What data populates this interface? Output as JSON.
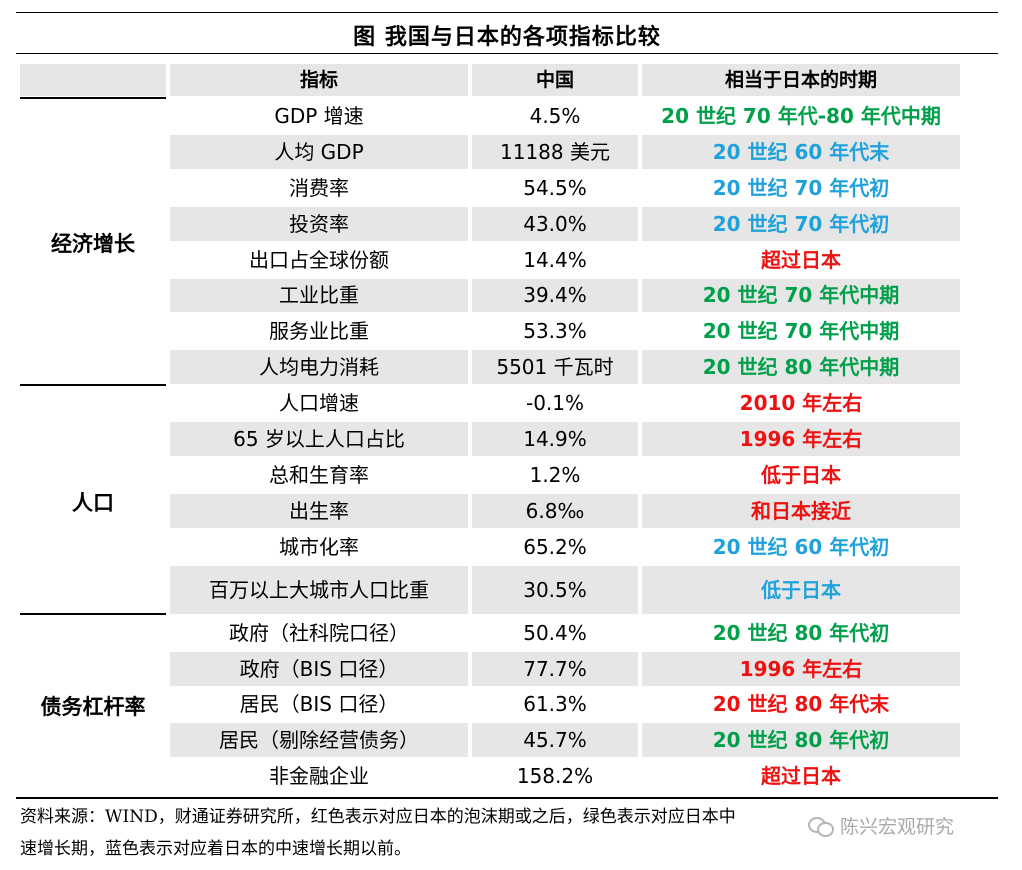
{
  "title": "图  我国与日本的各项指标比较",
  "headers": [
    "指标",
    "中国",
    "相当于日本的时期"
  ],
  "categories": {
    "economy": "经济增长",
    "population": "人口",
    "debt": "债务杠杆率"
  },
  "rows": [
    {
      "indicator": "GDP 增速",
      "china": "4.5%",
      "period": "20 世纪 70 年代-80 年代中期",
      "color": "green"
    },
    {
      "indicator": "人均 GDP",
      "china": "11188 美元",
      "period": "20 世纪 60 年代末",
      "color": "blue"
    },
    {
      "indicator": "消费率",
      "china": "54.5%",
      "period": "20 世纪 70 年代初",
      "color": "blue"
    },
    {
      "indicator": "投资率",
      "china": "43.0%",
      "period": "20 世纪 70 年代初",
      "color": "blue"
    },
    {
      "indicator": "出口占全球份额",
      "china": "14.4%",
      "period": "超过日本",
      "color": "red"
    },
    {
      "indicator": "工业比重",
      "china": "39.4%",
      "period": "20 世纪 70 年代中期",
      "color": "green"
    },
    {
      "indicator": "服务业比重",
      "china": "53.3%",
      "period": "20 世纪 70 年代中期",
      "color": "green"
    },
    {
      "indicator": "人均电力消耗",
      "china": "5501 千瓦时",
      "period": "20 世纪 80 年代中期",
      "color": "green"
    },
    {
      "indicator": "人口增速",
      "china": "-0.1%",
      "period": "2010 年左右",
      "color": "red"
    },
    {
      "indicator": "65 岁以上人口占比",
      "china": "14.9%",
      "period": "1996 年左右",
      "color": "red"
    },
    {
      "indicator": "总和生育率",
      "china": "1.2%",
      "period": "低于日本",
      "color": "red"
    },
    {
      "indicator": "出生率",
      "china": "6.8‰",
      "period": "和日本接近",
      "color": "red"
    },
    {
      "indicator": "城市化率",
      "china": "65.2%",
      "period": "20 世纪 60 年代初",
      "color": "blue"
    },
    {
      "indicator": "百万以上大城市人口比重",
      "china": "30.5%",
      "period": "低于日本",
      "color": "blue"
    },
    {
      "indicator": "政府（社科院口径）",
      "china": "50.4%",
      "period": "20 世纪 80 年代初",
      "color": "green"
    },
    {
      "indicator": "政府（BIS 口径）",
      "china": "77.7%",
      "period": "1996 年左右",
      "color": "red"
    },
    {
      "indicator": "居民（BIS 口径）",
      "china": "61.3%",
      "period": "20 世纪 80 年代末",
      "color": "red"
    },
    {
      "indicator": "居民（剔除经营债务）",
      "china": "45.7%",
      "period": "20 世纪 80 年代初",
      "color": "green"
    },
    {
      "indicator": "非金融企业",
      "china": "158.2%",
      "period": "超过日本",
      "color": "red"
    }
  ],
  "footnote": {
    "line1": "资料来源：WIND，财通证券研究所，红色表示对应日本的泡沫期或之后，绿色表示对应日本中",
    "line2": "速增长期，蓝色表示对应着日本的中速增长期以前。"
  },
  "watermark": "陈兴宏观研究",
  "colors": {
    "green": "#00a04b",
    "blue": "#1fa2db",
    "red": "#ee1111",
    "shade": "#e6e6e6"
  }
}
